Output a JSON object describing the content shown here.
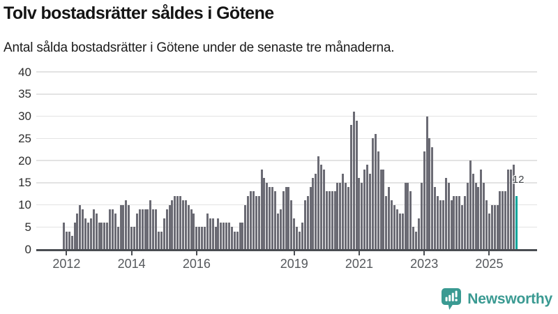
{
  "header": {
    "title": "Tolv bostadsrätter såldes i Götene",
    "subtitle": "Antal sålda bostadsrätter i Götene under de senaste tre månaderna."
  },
  "chart_data": {
    "type": "bar",
    "title": "Tolv bostadsrätter såldes i Götene",
    "subtitle": "Antal sålda bostadsrätter i Götene under de senaste tre månaderna.",
    "ylim": [
      0,
      40
    ],
    "y_ticks": [
      0,
      5,
      10,
      15,
      20,
      25,
      30,
      35,
      40
    ],
    "grid": "horizontal",
    "bar_color": "#6b6b74",
    "highlight_color": "#00a49a",
    "axis_color": "#4a4d52",
    "x_ticks": [
      {
        "label": "2012",
        "index": 1
      },
      {
        "label": "2014",
        "index": 25
      },
      {
        "label": "2016",
        "index": 49
      },
      {
        "label": "2019",
        "index": 85
      },
      {
        "label": "2021",
        "index": 109
      },
      {
        "label": "2023",
        "index": 133
      },
      {
        "label": "2025",
        "index": 157
      }
    ],
    "values": [
      6,
      4,
      4,
      3,
      6,
      8,
      10,
      9,
      7,
      6,
      7,
      9,
      8,
      6,
      6,
      6,
      6,
      9,
      9,
      8,
      5,
      10,
      10,
      11,
      10,
      5,
      5,
      8,
      9,
      9,
      9,
      9,
      11,
      9,
      9,
      4,
      4,
      7,
      9,
      10,
      11,
      12,
      12,
      12,
      11,
      11,
      10,
      9,
      8,
      5,
      5,
      5,
      5,
      8,
      7,
      7,
      5,
      7,
      6,
      6,
      6,
      6,
      5,
      4,
      4,
      6,
      6,
      10,
      12,
      13,
      13,
      12,
      12,
      18,
      16,
      15,
      14,
      14,
      13,
      8,
      9,
      13,
      14,
      14,
      11,
      7,
      5,
      4,
      6,
      11,
      12,
      14,
      16,
      17,
      21,
      19,
      18,
      13,
      13,
      13,
      13,
      15,
      15,
      17,
      15,
      14,
      28,
      31,
      29,
      16,
      15,
      18,
      19,
      17,
      25,
      26,
      22,
      18,
      18,
      12,
      14,
      11,
      10,
      9,
      8,
      8,
      15,
      15,
      13,
      5,
      4,
      7,
      15,
      22,
      30,
      25,
      23,
      14,
      12,
      11,
      11,
      16,
      15,
      11,
      12,
      12,
      12,
      10,
      12,
      15,
      20,
      17,
      15,
      14,
      18,
      15,
      11,
      8,
      10,
      10,
      10,
      13,
      13,
      13,
      18,
      18,
      19,
      12
    ],
    "annotation": {
      "index": 167,
      "value": 12,
      "label": "12"
    }
  },
  "footer": {
    "brand": "Newsworthy",
    "brand_color": "#3a9a92",
    "icon": "newsworthy-chart-bubble-icon"
  }
}
